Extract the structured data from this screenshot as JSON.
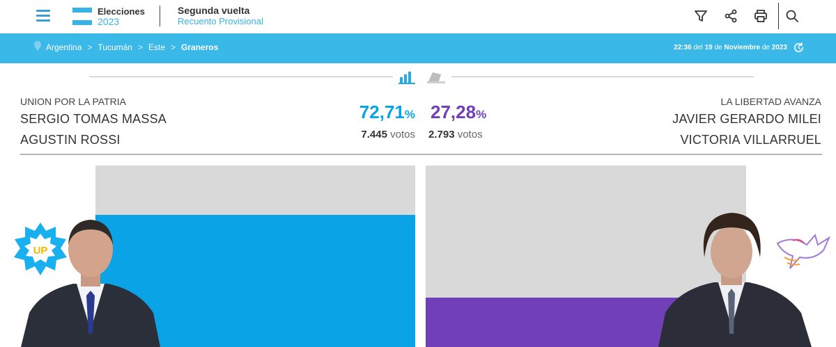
{
  "header": {
    "logo_title": "Elecciones",
    "logo_year": "2023",
    "round_title": "Segunda vuelta",
    "round_subtitle": "Recuento Provisional",
    "tools": [
      "filter-icon",
      "share-icon",
      "print-icon",
      "search-icon"
    ]
  },
  "breadcrumb": {
    "items": [
      "Argentina",
      "Tucumán",
      "Este"
    ],
    "current": "Graneros",
    "separator": ">"
  },
  "timestamp": {
    "time": "22:36",
    "del": "del",
    "day": "19",
    "de1": "de",
    "month": "Noviembre",
    "de2": "de",
    "year": "2023"
  },
  "left": {
    "party": "UNION POR LA PATRIA",
    "candidate": "SERGIO TOMAS MASSA",
    "running_mate": "AGUSTIN ROSSI",
    "percent": "72,71",
    "percent_sign": "%",
    "votes": "7.445",
    "votes_label": "votos",
    "color": "#0aa4e6",
    "bar_fraction": 0.7271,
    "badge": "UP"
  },
  "right": {
    "party": "LA LIBERTAD AVANZA",
    "candidate": "JAVIER GERARDO MILEI",
    "running_mate": "VICTORIA VILLARRUEL",
    "percent": "27,28",
    "percent_sign": "%",
    "votes": "2.793",
    "votes_label": "votos",
    "color": "#713fb8",
    "bar_fraction": 0.2728
  },
  "colors": {
    "accent": "#3ab8e8",
    "bar_background": "#d9d9d9"
  }
}
